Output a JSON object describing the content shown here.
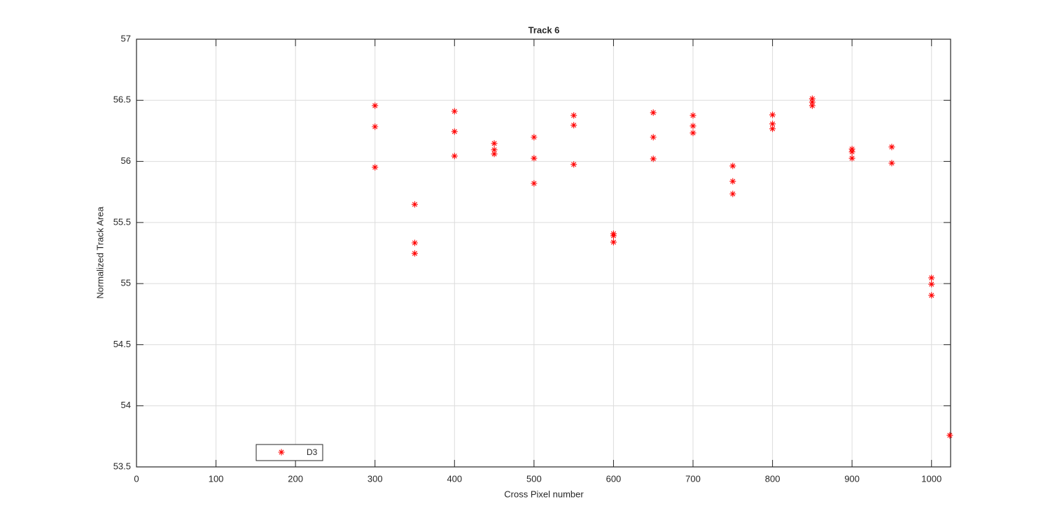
{
  "chart_data": {
    "type": "scatter",
    "title": "Track 6",
    "x_label": "Cross Pixel number",
    "y_label": "Normalized Track Area",
    "series": [
      {
        "name": "D3",
        "color": "#ff0000",
        "x": [
          300,
          300,
          300,
          350,
          350,
          350,
          400,
          400,
          400,
          450,
          450,
          450,
          500,
          500,
          500,
          550,
          550,
          550,
          600,
          600,
          600,
          650,
          650,
          650,
          700,
          700,
          700,
          750,
          750,
          750,
          800,
          800,
          800,
          850,
          850,
          850,
          900,
          900,
          900,
          950,
          950,
          1000,
          1000,
          1000,
          1023
        ],
        "values": [
          56.456,
          56.284,
          55.952,
          55.648,
          55.333,
          55.247,
          56.41,
          56.244,
          56.044,
          56.147,
          56.095,
          56.061,
          56.198,
          56.026,
          55.82,
          56.376,
          56.296,
          55.975,
          55.408,
          55.391,
          55.339,
          56.399,
          56.198,
          56.021,
          56.376,
          56.29,
          56.233,
          55.963,
          55.837,
          55.734,
          56.381,
          56.307,
          56.267,
          56.513,
          56.485,
          56.456,
          56.101,
          56.078,
          56.026,
          56.118,
          55.986,
          55.047,
          54.995,
          54.904,
          53.758
        ]
      }
    ],
    "xlim": [
      0,
      1024
    ],
    "ylim": [
      53.5,
      57
    ],
    "xticks": [
      0,
      100,
      200,
      300,
      400,
      500,
      600,
      700,
      800,
      900,
      1000
    ],
    "yticks": [
      53.5,
      54,
      54.5,
      55,
      55.5,
      56,
      56.5,
      57
    ],
    "grid": true,
    "legend_position": "lower left"
  }
}
